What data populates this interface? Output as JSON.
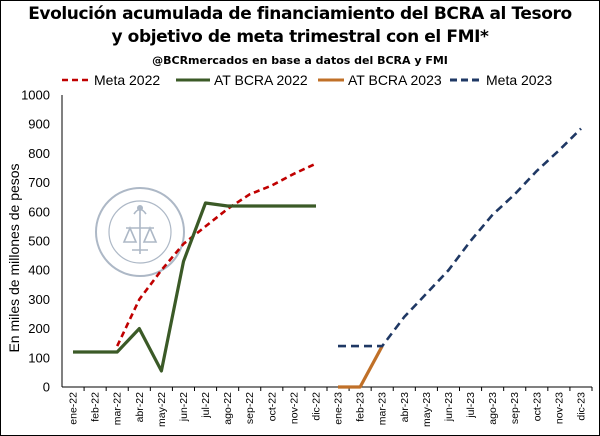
{
  "header": {
    "title_line1": "Evolución acumulada de financiamiento del BCRA al Tesoro",
    "title_line2": "y objetivo de meta trimestral con el FMI*",
    "subtitle": "@BCRmercados en base a datos del BCRA y FMI"
  },
  "watermark": {
    "name": "bolsa-de-comercio-de-rosario-seal",
    "text": "BOLSA DE COMERCIO DE ROSARIO"
  },
  "chart_data": {
    "type": "line",
    "categories": [
      "ene-22",
      "feb-22",
      "mar-22",
      "abr-22",
      "may-22",
      "jun-22",
      "jul-22",
      "ago-22",
      "sep-22",
      "oct-22",
      "nov-22",
      "dic-22",
      "ene-23",
      "feb-23",
      "mar-23",
      "abr-23",
      "may-23",
      "jun-23",
      "jul-23",
      "ago-23",
      "sep-23",
      "oct-23",
      "nov-23",
      "dic-23"
    ],
    "ylabel": "En miles de millones de pesos",
    "ylim": [
      0,
      1000
    ],
    "yticks": [
      0,
      100,
      200,
      300,
      400,
      500,
      600,
      700,
      800,
      900,
      1000
    ],
    "legend_position": "top",
    "grid": false,
    "series": [
      {
        "name": "Meta 2022",
        "color": "#c00000",
        "dash": "dashed",
        "values": [
          null,
          null,
          140,
          300,
          400,
          490,
          550,
          610,
          660,
          690,
          730,
          765,
          null,
          null,
          null,
          null,
          null,
          null,
          null,
          null,
          null,
          null,
          null,
          null
        ]
      },
      {
        "name": "AT BCRA 2022",
        "color": "#3b5a27",
        "dash": "solid",
        "values": [
          120,
          120,
          120,
          200,
          55,
          430,
          630,
          620,
          620,
          620,
          620,
          620,
          null,
          null,
          null,
          null,
          null,
          null,
          null,
          null,
          null,
          null,
          null,
          null
        ]
      },
      {
        "name": "AT BCRA 2023",
        "color": "#c07028",
        "dash": "solid",
        "values": [
          null,
          null,
          null,
          null,
          null,
          null,
          null,
          null,
          null,
          null,
          null,
          null,
          0,
          0,
          140,
          null,
          null,
          null,
          null,
          null,
          null,
          null,
          null,
          null
        ]
      },
      {
        "name": "Meta 2023",
        "color": "#1f3864",
        "dash": "dashed",
        "values": [
          null,
          null,
          null,
          null,
          null,
          null,
          null,
          null,
          null,
          null,
          null,
          null,
          140,
          140,
          140,
          240,
          320,
          400,
          500,
          590,
          660,
          740,
          810,
          885
        ]
      }
    ]
  }
}
